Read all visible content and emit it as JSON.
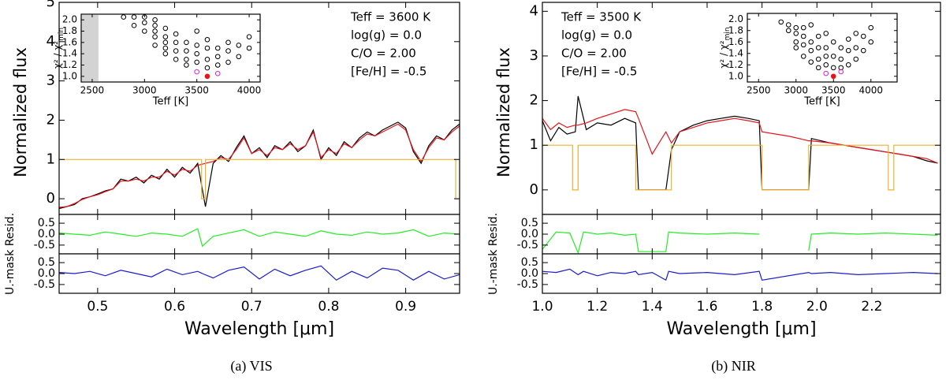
{
  "chart_data": [
    {
      "type": "line",
      "ylabel": "Normalized flux",
      "caption": "(a) VIS",
      "annotations": [
        "Teff = 3600 K",
        "log(g) = 0.0",
        "C/O = 2.00",
        "[Fe/H] = -0.5"
      ],
      "xlim": [
        0.45,
        0.97
      ],
      "ylim": [
        -0.4,
        5
      ],
      "yticks": [
        0,
        1,
        2,
        3,
        4,
        5
      ],
      "x": [
        0.45,
        0.46,
        0.47,
        0.48,
        0.49,
        0.5,
        0.51,
        0.52,
        0.53,
        0.54,
        0.55,
        0.56,
        0.57,
        0.58,
        0.59,
        0.6,
        0.61,
        0.62,
        0.63,
        0.64,
        0.65,
        0.66,
        0.67,
        0.68,
        0.69,
        0.7,
        0.71,
        0.72,
        0.73,
        0.74,
        0.75,
        0.76,
        0.77,
        0.78,
        0.79,
        0.8,
        0.81,
        0.82,
        0.83,
        0.84,
        0.85,
        0.86,
        0.87,
        0.88,
        0.89,
        0.9,
        0.91,
        0.92,
        0.93,
        0.94,
        0.95,
        0.96,
        0.97
      ],
      "series": [
        {
          "color": "#000000",
          "values": [
            -0.25,
            -0.2,
            -0.15,
            0.0,
            0.05,
            0.12,
            0.2,
            0.25,
            0.5,
            0.45,
            0.55,
            0.4,
            0.6,
            0.5,
            0.75,
            0.55,
            0.8,
            0.65,
            0.9,
            -0.2,
            0.9,
            1.1,
            0.95,
            1.3,
            1.6,
            1.15,
            1.3,
            1.05,
            1.35,
            1.25,
            1.45,
            1.2,
            1.35,
            1.75,
            1.0,
            1.3,
            1.1,
            1.45,
            1.3,
            1.55,
            1.7,
            1.6,
            1.75,
            1.85,
            1.95,
            1.8,
            1.2,
            0.9,
            1.35,
            1.6,
            1.5,
            1.75,
            1.9
          ]
        },
        {
          "color": "#e8141c",
          "values": [
            -0.22,
            -0.2,
            -0.12,
            -0.02,
            0.05,
            0.1,
            0.18,
            0.25,
            0.45,
            0.45,
            0.5,
            0.45,
            0.55,
            0.55,
            0.7,
            0.6,
            0.75,
            0.7,
            0.85,
            0.9,
            0.95,
            1.05,
            1.0,
            1.25,
            1.55,
            1.15,
            1.25,
            1.1,
            1.3,
            1.25,
            1.4,
            1.25,
            1.35,
            1.7,
            1.05,
            1.25,
            1.15,
            1.4,
            1.3,
            1.5,
            1.65,
            1.6,
            1.7,
            1.8,
            1.9,
            1.75,
            1.25,
            0.95,
            1.3,
            1.55,
            1.5,
            1.7,
            1.85
          ]
        },
        {
          "color": "#f0b030",
          "x": [
            0.45,
            0.635,
            0.635,
            0.64,
            0.64,
            0.965,
            0.965,
            0.97
          ],
          "values": [
            1,
            1,
            0,
            0,
            1,
            1,
            0,
            0
          ]
        }
      ]
    },
    {
      "type": "line",
      "xlim": [
        0.45,
        0.97
      ],
      "ylim": [
        -0.9,
        0.9
      ],
      "yticks": [
        0.5,
        {
          "value": 0,
          "label": "0.0"
        },
        -0.5
      ],
      "x": [
        0.45,
        0.47,
        0.49,
        0.51,
        0.53,
        0.55,
        0.57,
        0.59,
        0.61,
        0.63,
        0.636,
        0.65,
        0.67,
        0.69,
        0.71,
        0.73,
        0.75,
        0.77,
        0.79,
        0.81,
        0.83,
        0.85,
        0.87,
        0.89,
        0.91,
        0.93,
        0.95,
        0.97
      ],
      "series": [
        {
          "color": "#22ee22",
          "values": [
            0.05,
            0.0,
            -0.05,
            0.1,
            0.0,
            -0.1,
            0.05,
            0.0,
            -0.1,
            0.25,
            -0.55,
            -0.1,
            0.05,
            0.2,
            -0.1,
            0.1,
            0.0,
            -0.1,
            0.15,
            0.0,
            -0.05,
            0.1,
            0.0,
            0.05,
            0.2,
            -0.1,
            0.05,
            0.0
          ]
        }
      ]
    },
    {
      "type": "line",
      "ylabel": "U.-mask Resid.",
      "xlabel": "Wavelength [μm]",
      "xlim": [
        0.45,
        0.97
      ],
      "ylim": [
        -0.9,
        0.9
      ],
      "yticks": [
        0.5,
        {
          "value": 0,
          "label": "0.0"
        },
        -0.5
      ],
      "xticks": [
        0.5,
        0.6,
        0.7,
        0.8,
        0.9
      ],
      "x": [
        0.45,
        0.47,
        0.49,
        0.51,
        0.53,
        0.55,
        0.57,
        0.59,
        0.61,
        0.63,
        0.636,
        0.65,
        0.67,
        0.69,
        0.71,
        0.73,
        0.75,
        0.77,
        0.79,
        0.81,
        0.83,
        0.85,
        0.87,
        0.89,
        0.91,
        0.93,
        0.95,
        0.97
      ],
      "series": [
        {
          "color": "#1c1ccc",
          "values": [
            0.05,
            0.0,
            0.1,
            -0.1,
            0.15,
            0.0,
            -0.15,
            0.2,
            -0.05,
            0.1,
            0.0,
            -0.2,
            0.15,
            0.3,
            -0.25,
            0.2,
            -0.1,
            0.15,
            0.35,
            -0.3,
            0.1,
            -0.2,
            0.25,
            0.15,
            -0.3,
            0.1,
            -0.25,
            -0.05
          ]
        }
      ]
    },
    {
      "type": "scatter",
      "xlabel": "Teff [K]",
      "ylabel": "χ² / χ²",
      "ylabel_sub": "min",
      "xlim": [
        2395,
        4105
      ],
      "ylim": [
        0.9,
        2.1
      ],
      "shaded_xrange": [
        2400,
        2560
      ],
      "shade_color": "#d3d3d3",
      "xticks": [
        2500,
        3000,
        3500,
        4000
      ],
      "yticks": [
        {
          "value": 1,
          "label": "1.0"
        },
        1.2,
        1.4,
        1.6,
        1.8,
        {
          "value": 2,
          "label": "2.0"
        }
      ],
      "series": [
        {
          "color": "#000000",
          "marker": "open",
          "x": [
            2800,
            2900,
            2900,
            3000,
            3000,
            3000,
            3100,
            3100,
            3100,
            3100,
            3100,
            3200,
            3200,
            3200,
            3200,
            3200,
            3300,
            3300,
            3300,
            3300,
            3400,
            3400,
            3400,
            3400,
            3500,
            3500,
            3500,
            3500,
            3600,
            3600,
            3600,
            3600,
            3700,
            3700,
            3700,
            3800,
            3800,
            3800,
            3900,
            3900,
            4000,
            4000
          ],
          "values": [
            2.05,
            1.9,
            2.05,
            1.8,
            1.95,
            2.05,
            1.55,
            1.7,
            1.8,
            1.9,
            2.0,
            1.4,
            1.5,
            1.6,
            1.7,
            1.85,
            1.3,
            1.45,
            1.6,
            1.75,
            1.2,
            1.3,
            1.45,
            1.6,
            1.25,
            1.4,
            1.55,
            1.8,
            1.15,
            1.3,
            1.5,
            1.65,
            1.2,
            1.35,
            1.5,
            1.25,
            1.45,
            1.6,
            1.35,
            1.55,
            1.5,
            1.7
          ]
        },
        {
          "color": "#e020d0",
          "marker": "open",
          "x": [
            3500,
            3700
          ],
          "values": [
            1.08,
            1.05
          ]
        },
        {
          "color": "#e8141c",
          "marker": "filled",
          "x": [
            3600
          ],
          "values": [
            1.0
          ]
        }
      ]
    },
    {
      "type": "line",
      "ylabel": "Normalized flux",
      "caption": "(b) NIR",
      "annotations": [
        "Teff = 3500 K",
        "log(g) = 0.0",
        "C/O = 2.00",
        "[Fe/H] = -0.5"
      ],
      "xlim": [
        1.0,
        2.45
      ],
      "ylim": [
        -0.55,
        4.2
      ],
      "yticks": [
        0,
        1,
        2,
        3,
        4
      ],
      "x": [
        1.0,
        1.03,
        1.06,
        1.09,
        1.12,
        1.13,
        1.16,
        1.2,
        1.25,
        1.3,
        1.34,
        1.35,
        1.4,
        1.45,
        1.47,
        1.5,
        1.55,
        1.6,
        1.65,
        1.7,
        1.75,
        1.79,
        1.8,
        1.9,
        1.97,
        1.98,
        2.05,
        2.1,
        2.15,
        2.2,
        2.25,
        2.3,
        2.35,
        2.4,
        2.44
      ],
      "series": [
        {
          "color": "#000000",
          "values": [
            1.55,
            1.1,
            1.4,
            1.25,
            1.3,
            2.1,
            1.35,
            1.5,
            1.45,
            1.6,
            1.5,
            0.0,
            0.0,
            0.0,
            0.9,
            1.3,
            1.45,
            1.55,
            1.6,
            1.65,
            1.6,
            1.55,
            0.0,
            0.0,
            0.0,
            1.15,
            1.05,
            1.0,
            0.95,
            0.9,
            0.85,
            0.8,
            0.75,
            0.65,
            0.6
          ]
        },
        {
          "color": "#e8141c",
          "values": [
            1.6,
            1.35,
            1.5,
            1.4,
            1.45,
            1.45,
            1.5,
            1.6,
            1.7,
            1.8,
            1.75,
            1.6,
            0.8,
            1.3,
            1.05,
            1.3,
            1.4,
            1.5,
            1.55,
            1.6,
            1.55,
            1.5,
            1.3,
            1.2,
            1.1,
            1.1,
            1.05,
            1.0,
            0.95,
            0.9,
            0.85,
            0.8,
            0.75,
            0.7,
            0.6
          ]
        },
        {
          "color": "#f0b030",
          "x": [
            1.0,
            1.11,
            1.11,
            1.13,
            1.13,
            1.34,
            1.34,
            1.47,
            1.47,
            1.8,
            1.8,
            1.97,
            1.97,
            2.26,
            2.26,
            2.28,
            2.28,
            2.45
          ],
          "values": [
            1,
            1,
            0,
            0,
            1,
            1,
            0,
            0,
            1,
            1,
            0,
            0,
            1,
            1,
            0,
            0,
            1,
            1
          ]
        }
      ]
    },
    {
      "type": "line",
      "xlim": [
        1.0,
        2.45
      ],
      "ylim": [
        -0.9,
        0.9
      ],
      "yticks": [
        0.5,
        {
          "value": 0,
          "label": "0.0"
        },
        -0.5
      ],
      "x": [
        1.0,
        1.05,
        1.1,
        1.13,
        1.15,
        1.2,
        1.25,
        1.3,
        1.34,
        1.35,
        1.4,
        1.45,
        1.46,
        1.5,
        1.6,
        1.7,
        1.79,
        1.8,
        1.97,
        1.98,
        2.05,
        2.15,
        2.25,
        2.35,
        2.44
      ],
      "series": [
        {
          "color": "#22ee22",
          "values": [
            -0.7,
            0.1,
            0.05,
            -0.85,
            0.1,
            0.0,
            0.05,
            -0.05,
            0.0,
            -0.8,
            -0.8,
            -0.8,
            0.1,
            0.05,
            0.0,
            0.05,
            0.0,
            null,
            -0.75,
            0.0,
            0.05,
            0.0,
            0.05,
            0.0,
            -0.05
          ]
        }
      ]
    },
    {
      "type": "line",
      "ylabel": "U.-mask Resid.",
      "xlabel": "Wavelength [μm]",
      "xlim": [
        1.0,
        2.45
      ],
      "ylim": [
        -0.9,
        0.9
      ],
      "yticks": [
        0.5,
        {
          "value": 0,
          "label": "0.0"
        },
        -0.5
      ],
      "xticks": [
        {
          "value": 1,
          "label": "1.0"
        },
        1.2,
        1.4,
        1.6,
        1.8,
        {
          "value": 2,
          "label": "2.0"
        },
        2.2
      ],
      "x": [
        1.0,
        1.05,
        1.1,
        1.13,
        1.15,
        1.2,
        1.25,
        1.3,
        1.34,
        1.35,
        1.4,
        1.45,
        1.46,
        1.5,
        1.6,
        1.7,
        1.79,
        1.8,
        1.97,
        1.98,
        2.05,
        2.15,
        2.25,
        2.35,
        2.44
      ],
      "series": [
        {
          "color": "#1c1ccc",
          "values": [
            0.1,
            0.05,
            0.2,
            -0.05,
            0.1,
            -0.1,
            0.05,
            0.0,
            0.1,
            -0.05,
            0.05,
            -0.3,
            0.1,
            0.0,
            0.05,
            -0.05,
            0.1,
            -0.3,
            0.05,
            0.0,
            0.05,
            -0.05,
            0.0,
            0.05,
            0.0
          ]
        }
      ]
    },
    {
      "type": "scatter",
      "xlabel": "Teff [K]",
      "ylabel": "χ² / χ²",
      "ylabel_sub": "min",
      "xlim": [
        2350,
        4350
      ],
      "ylim": [
        0.9,
        2.1
      ],
      "xticks": [
        2500,
        3000,
        3500,
        4000
      ],
      "yticks": [
        {
          "value": 1,
          "label": "1.0"
        },
        1.2,
        1.4,
        1.6,
        1.8,
        {
          "value": 2,
          "label": "2.0"
        }
      ],
      "series": [
        {
          "color": "#000000",
          "marker": "open",
          "x": [
            2800,
            2900,
            2900,
            3000,
            3000,
            3000,
            3000,
            3100,
            3100,
            3100,
            3100,
            3200,
            3200,
            3200,
            3200,
            3300,
            3300,
            3300,
            3300,
            3400,
            3400,
            3400,
            3400,
            3500,
            3500,
            3500,
            3600,
            3600,
            3600,
            3700,
            3700,
            3700,
            3800,
            3800,
            3800,
            3900,
            3900,
            4000,
            4000
          ],
          "values": [
            1.95,
            1.8,
            1.9,
            1.5,
            1.6,
            1.75,
            1.85,
            1.35,
            1.55,
            1.7,
            1.85,
            1.25,
            1.45,
            1.6,
            1.9,
            1.15,
            1.3,
            1.5,
            1.7,
            1.2,
            1.35,
            1.5,
            1.75,
            1.15,
            1.35,
            1.6,
            1.15,
            1.3,
            1.5,
            1.2,
            1.45,
            1.65,
            1.3,
            1.5,
            1.75,
            1.45,
            1.7,
            1.6,
            1.85
          ]
        },
        {
          "color": "#e020d0",
          "marker": "open",
          "x": [
            3400,
            3600
          ],
          "values": [
            1.05,
            1.08
          ]
        },
        {
          "color": "#e8141c",
          "marker": "filled",
          "x": [
            3500
          ],
          "values": [
            1.0
          ]
        }
      ]
    }
  ]
}
